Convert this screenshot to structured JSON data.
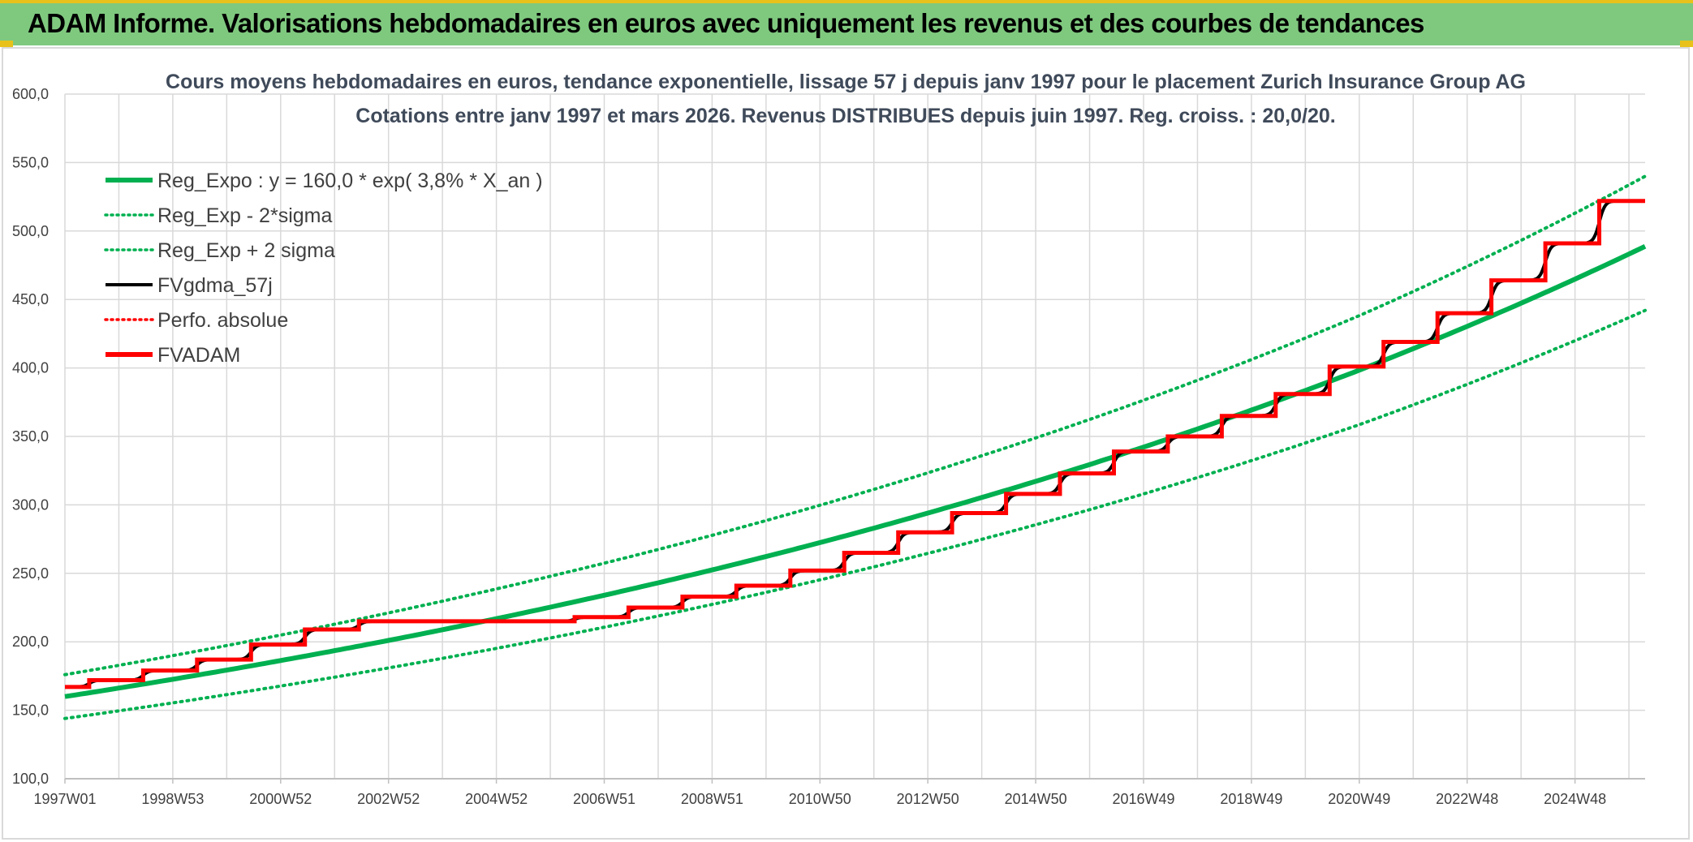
{
  "banner": {
    "title": "ADAM Informe. Valorisations hebdomadaires en euros avec uniquement les revenus et des courbes de tendances"
  },
  "colors": {
    "banner_bg": "#7fc97f",
    "accent_yellow": "#e8c21a",
    "green": "#00b050",
    "red": "#ff0000",
    "black": "#000000",
    "grid": "#d9d9d9"
  },
  "chart_data": {
    "type": "line",
    "title_line1": "Cours moyens hebdomadaires en euros, tendance exponentielle, lissage 57 j depuis janv 1997 pour le placement Zurich Insurance Group AG",
    "title_line2": "Cotations entre janv 1997 et mars 2026. Revenus DISTRIBUES depuis juin 1997. Reg. croiss. : 20,0/20.",
    "y_ticks": [
      "100,0",
      "150,0",
      "200,0",
      "250,0",
      "300,0",
      "350,0",
      "400,0",
      "450,0",
      "500,0",
      "550,0",
      "600,0"
    ],
    "ylim": [
      100,
      600
    ],
    "x_ticks": [
      "1997W01",
      "1998W53",
      "2000W52",
      "2002W52",
      "2004W52",
      "2006W51",
      "2008W51",
      "2010W50",
      "2012W50",
      "2014W50",
      "2016W49",
      "2018W49",
      "2020W49",
      "2022W48",
      "2024W48"
    ],
    "x_tick_years": [
      1997.0,
      1999.0,
      2001.0,
      2003.0,
      2005.0,
      2007.0,
      2009.0,
      2011.0,
      2013.0,
      2015.0,
      2017.0,
      2019.0,
      2021.0,
      2023.0,
      2025.0
    ],
    "xlim": [
      1997.0,
      2026.3
    ],
    "grid": true,
    "legend_position": "top-left",
    "legend": [
      {
        "label": "Reg_Expo : y = 160,0 * exp( 3,8% *  X_an )",
        "style": "solid-thick",
        "color": "#00b050"
      },
      {
        "label": "Reg_Exp - 2*sigma",
        "style": "dotted",
        "color": "#00b050"
      },
      {
        "label": "Reg_Exp + 2 sigma",
        "style": "dotted",
        "color": "#00b050"
      },
      {
        "label": "FVgdma_57j",
        "style": "solid",
        "color": "#000000"
      },
      {
        "label": "Perfo. absolue",
        "style": "dotted",
        "color": "#ff0000"
      },
      {
        "label": "FVADAM",
        "style": "solid-thick",
        "color": "#ff0000"
      }
    ],
    "series": [
      {
        "name": "Reg_Expo : y = 160,0 * exp( 3,8% *  X_an )",
        "x": [
          1997.0,
          2001.0,
          2005.0,
          2009.0,
          2013.0,
          2017.0,
          2021.0,
          2026.3
        ],
        "values": [
          160.0,
          186.3,
          216.9,
          252.5,
          294.0,
          342.2,
          398.4,
          488.8
        ]
      },
      {
        "name": "Reg_Exp - 2*sigma",
        "x": [
          1997.0,
          2001.0,
          2005.0,
          2009.0,
          2013.0,
          2017.0,
          2021.0,
          2026.3
        ],
        "values": [
          144.0,
          167.7,
          195.2,
          227.3,
          264.6,
          308.0,
          358.6,
          442.0
        ]
      },
      {
        "name": "Reg_Exp + 2 sigma",
        "x": [
          1997.0,
          2001.0,
          2005.0,
          2009.0,
          2013.0,
          2017.0,
          2021.0,
          2026.3
        ],
        "values": [
          176.0,
          204.9,
          238.6,
          277.8,
          323.4,
          376.4,
          438.2,
          540.0
        ]
      },
      {
        "name": "FVADAM",
        "steps": [
          [
            1997.0,
            167.0
          ],
          [
            1997.45,
            172.0
          ],
          [
            1998.45,
            179.0
          ],
          [
            1999.45,
            187.0
          ],
          [
            2000.45,
            198.0
          ],
          [
            2001.45,
            209.0
          ],
          [
            2002.45,
            215.0
          ],
          [
            2006.45,
            218.0
          ],
          [
            2007.45,
            225.0
          ],
          [
            2008.45,
            233.0
          ],
          [
            2009.45,
            241.0
          ],
          [
            2010.45,
            252.0
          ],
          [
            2011.45,
            265.0
          ],
          [
            2012.45,
            280.0
          ],
          [
            2013.45,
            294.0
          ],
          [
            2014.45,
            308.0
          ],
          [
            2015.45,
            323.0
          ],
          [
            2016.45,
            339.0
          ],
          [
            2017.45,
            350.0
          ],
          [
            2018.45,
            365.0
          ],
          [
            2019.45,
            381.0
          ],
          [
            2020.45,
            401.0
          ],
          [
            2021.45,
            419.0
          ],
          [
            2022.45,
            440.0
          ],
          [
            2023.45,
            464.0
          ],
          [
            2024.45,
            491.0
          ],
          [
            2025.45,
            522.0
          ]
        ],
        "end_x": 2026.3
      }
    ]
  }
}
